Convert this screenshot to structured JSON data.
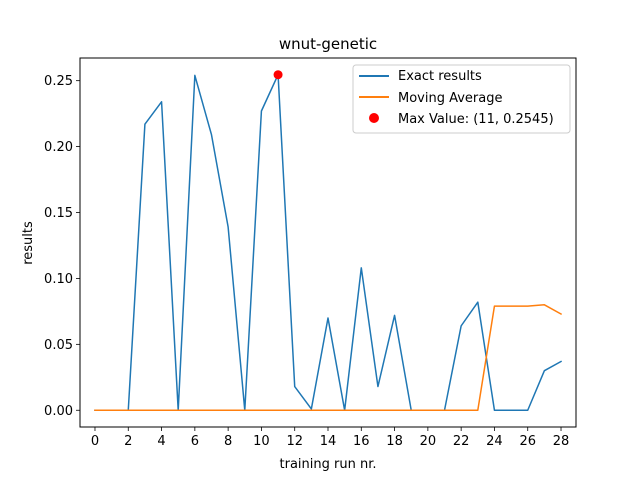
{
  "chart_data": {
    "type": "line",
    "title": "wnut-genetic",
    "xlabel": "training run nr.",
    "ylabel": "results",
    "xlim": [
      -0.9,
      28.9
    ],
    "ylim": [
      -0.0127,
      0.2672
    ],
    "xticks": [
      0,
      2,
      4,
      6,
      8,
      10,
      12,
      14,
      16,
      18,
      20,
      22,
      24,
      26,
      28
    ],
    "yticks": [
      0.0,
      0.05,
      0.1,
      0.15,
      0.2,
      0.25
    ],
    "ytick_labels": [
      "0.00",
      "0.05",
      "0.10",
      "0.15",
      "0.20",
      "0.25"
    ],
    "grid": false,
    "legend_position": "top-right",
    "x": [
      0,
      1,
      2,
      3,
      4,
      5,
      6,
      7,
      8,
      9,
      10,
      11,
      12,
      13,
      14,
      15,
      16,
      17,
      18,
      19,
      20,
      21,
      22,
      23,
      24,
      25,
      26,
      27,
      28
    ],
    "series": [
      {
        "name": "Exact results",
        "color": "#1f77b4",
        "values": [
          0.0,
          0.0,
          0.0,
          0.217,
          0.234,
          0.0,
          0.254,
          0.209,
          0.139,
          0.0,
          0.227,
          0.2545,
          0.018,
          0.001,
          0.07,
          0.0,
          0.108,
          0.018,
          0.072,
          0.0,
          0.0,
          0.0,
          0.064,
          0.082,
          0.0,
          0.0,
          0.0,
          0.03,
          0.037
        ]
      },
      {
        "name": "Moving Average",
        "color": "#ff7f0e",
        "values": [
          0.0,
          0.0,
          0.0,
          0.0,
          0.0,
          0.0,
          0.0,
          0.0,
          0.0,
          0.0,
          0.0,
          0.0,
          0.0,
          0.0,
          0.0,
          0.0,
          0.0,
          0.0,
          0.0,
          0.0,
          0.0,
          0.0,
          0.0,
          0.0,
          0.079,
          0.079,
          0.079,
          0.08,
          0.073
        ]
      }
    ],
    "max_point": {
      "name": "Max Value: (11, 0.2545)",
      "x": 11,
      "y": 0.2545,
      "color": "#ff0000"
    }
  }
}
